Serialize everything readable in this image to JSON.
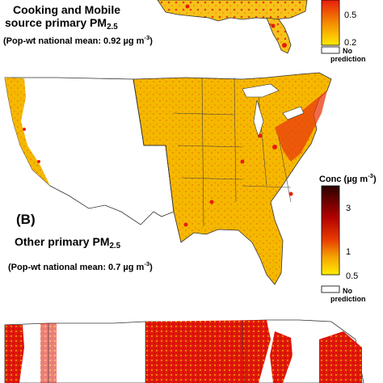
{
  "panel_a": {
    "title_line1": "Cooking and Mobile",
    "title_line2_prefix": "source primary PM",
    "title_line2_sub": "2.5",
    "mean_prefix": "(Pop-wt national mean: 0.92 µg m",
    "mean_sup": "-3",
    "mean_suffix": ")",
    "legend_ticks": [
      "0.5",
      "0.2"
    ],
    "no_prediction_line1": "No",
    "no_prediction_line2": "prediction"
  },
  "panel_b": {
    "letter": "(B)",
    "title_prefix": "Other primary PM",
    "title_sub": "2.5",
    "mean_prefix": "(Pop-wt national mean: 0.7 µg m",
    "mean_sup": "-3",
    "mean_suffix": ")",
    "legend_title_prefix": "Conc (µg m",
    "legend_title_sup": "-3",
    "legend_title_suffix": ")",
    "legend_ticks": [
      "3",
      "1",
      "0.5"
    ],
    "no_prediction_line1": "No",
    "no_prediction_line2": "prediction"
  },
  "colors": {
    "low": "#ffe066",
    "mid": "#f5b400",
    "high": "#e81c0c",
    "veryhigh": "#7a0000",
    "border": "#333333"
  }
}
